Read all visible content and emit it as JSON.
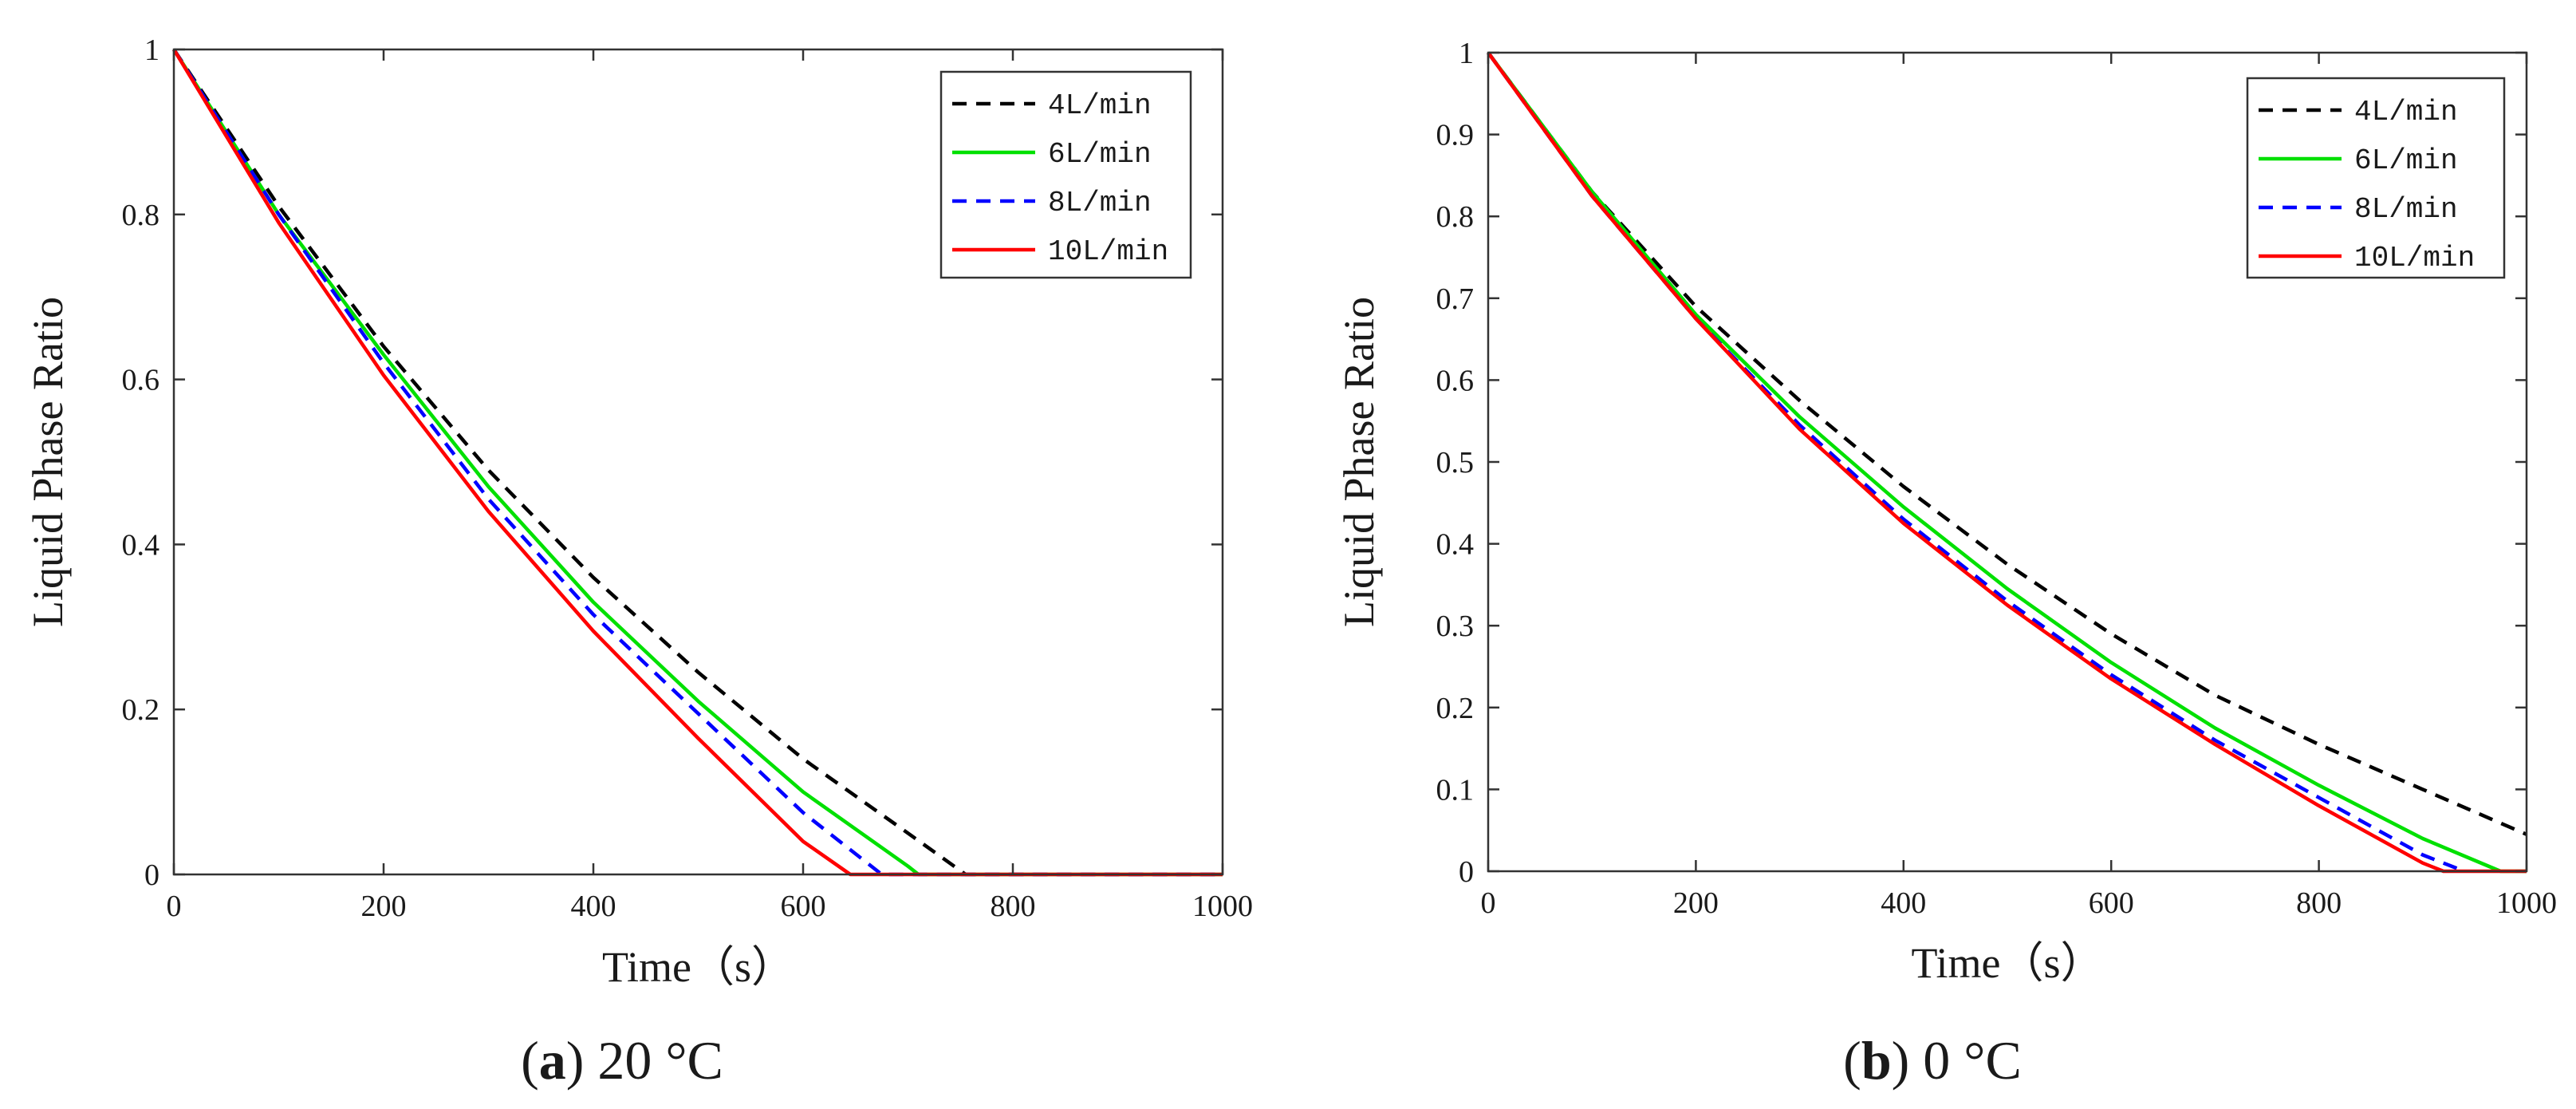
{
  "colors": {
    "4L/min": "#000000",
    "6L/min": "#00e000",
    "8L/min": "#0000ff",
    "10L/min": "#ff0000"
  },
  "chart_data": [
    {
      "type": "line",
      "panel_label": "a",
      "caption": "20 °C",
      "xlabel": "Time（s）",
      "ylabel": "Liquid Phase Ratio",
      "xlim": [
        0,
        1000
      ],
      "ylim": [
        0,
        1
      ],
      "xticks": [
        0,
        200,
        400,
        600,
        800,
        1000
      ],
      "yticks": [
        0,
        0.2,
        0.4,
        0.6,
        0.8,
        1
      ],
      "ytick_labels": [
        "0",
        "0.2",
        "0.4",
        "0.6",
        "0.8",
        "1"
      ],
      "grid": false,
      "legend_position": "top-right",
      "series": [
        {
          "name": "4L/min",
          "style": "dashed",
          "x": [
            0,
            100,
            200,
            300,
            400,
            500,
            600,
            700,
            755,
            800,
            900,
            1000
          ],
          "y": [
            1,
            0.81,
            0.64,
            0.49,
            0.36,
            0.245,
            0.14,
            0.05,
            0,
            0,
            0,
            0
          ]
        },
        {
          "name": "6L/min",
          "style": "solid",
          "x": [
            0,
            100,
            200,
            300,
            400,
            500,
            600,
            700,
            710,
            800,
            900,
            1000
          ],
          "y": [
            1,
            0.8,
            0.63,
            0.47,
            0.33,
            0.21,
            0.1,
            0.01,
            0,
            0,
            0,
            0
          ]
        },
        {
          "name": "8L/min",
          "style": "dashed",
          "x": [
            0,
            100,
            200,
            300,
            400,
            500,
            600,
            675,
            700,
            800,
            900,
            1000
          ],
          "y": [
            1,
            0.8,
            0.62,
            0.455,
            0.315,
            0.195,
            0.075,
            0,
            0,
            0,
            0,
            0
          ]
        },
        {
          "name": "10L/min",
          "style": "solid",
          "x": [
            0,
            100,
            200,
            300,
            400,
            500,
            600,
            645,
            700,
            800,
            900,
            1000
          ],
          "y": [
            1,
            0.79,
            0.605,
            0.44,
            0.295,
            0.165,
            0.04,
            0,
            0,
            0,
            0,
            0
          ]
        }
      ]
    },
    {
      "type": "line",
      "panel_label": "b",
      "caption": "0 °C",
      "xlabel": "Time（s）",
      "ylabel": "Liquid Phase Ratio",
      "xlim": [
        0,
        1000
      ],
      "ylim": [
        0,
        1
      ],
      "xticks": [
        0,
        200,
        400,
        600,
        800,
        1000
      ],
      "yticks": [
        0,
        0.1,
        0.2,
        0.3,
        0.4,
        0.5,
        0.6,
        0.7,
        0.8,
        0.9,
        1
      ],
      "ytick_labels": [
        "0",
        "0.1",
        "0.2",
        "0.3",
        "0.4",
        "0.5",
        "0.6",
        "0.7",
        "0.8",
        "0.9",
        "1"
      ],
      "grid": false,
      "legend_position": "top-right",
      "series": [
        {
          "name": "4L/min",
          "style": "dashed",
          "x": [
            0,
            100,
            200,
            300,
            400,
            500,
            600,
            700,
            800,
            900,
            1000
          ],
          "y": [
            1,
            0.83,
            0.69,
            0.575,
            0.47,
            0.375,
            0.29,
            0.215,
            0.155,
            0.1,
            0.045
          ]
        },
        {
          "name": "6L/min",
          "style": "solid",
          "x": [
            0,
            100,
            200,
            300,
            400,
            500,
            600,
            700,
            800,
            900,
            975,
            1000
          ],
          "y": [
            1,
            0.83,
            0.68,
            0.555,
            0.445,
            0.345,
            0.255,
            0.175,
            0.105,
            0.04,
            0,
            0
          ]
        },
        {
          "name": "8L/min",
          "style": "dashed",
          "x": [
            0,
            100,
            200,
            300,
            400,
            500,
            600,
            700,
            800,
            900,
            940
          ],
          "y": [
            1,
            0.825,
            0.675,
            0.545,
            0.43,
            0.33,
            0.24,
            0.16,
            0.09,
            0.02,
            0
          ]
        },
        {
          "name": "10L/min",
          "style": "solid",
          "x": [
            0,
            100,
            200,
            300,
            400,
            500,
            600,
            700,
            800,
            900,
            920,
            1000
          ],
          "y": [
            1,
            0.825,
            0.675,
            0.54,
            0.425,
            0.325,
            0.235,
            0.155,
            0.08,
            0.01,
            0,
            0
          ]
        }
      ]
    }
  ]
}
